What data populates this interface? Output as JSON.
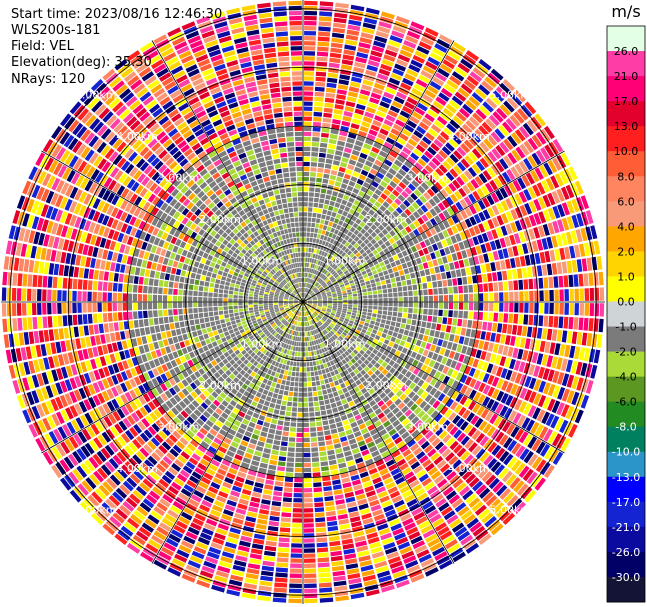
{
  "info": {
    "start_time": "Start time: 2023/08/16 12:46:30",
    "station": "WLS200s-181",
    "field": "Field: VEL",
    "elevation": "Elevation(deg): 35.30",
    "nrays": "NRays: 120"
  },
  "chart_data": {
    "type": "heatmap",
    "projection": "polar PPI scan",
    "field": "VEL",
    "units": "m/s",
    "nrays": 120,
    "range_rings_km": [
      1.0,
      2.0,
      3.0,
      4.0,
      5.0
    ],
    "range_ring_labels": [
      "1.00km",
      "2.00km",
      "3.00km",
      "4.00km",
      "5.00km"
    ],
    "colorbar": {
      "label": "m/s",
      "ticks": [
        "26.0",
        "21.0",
        "17.0",
        "13.0",
        "10.0",
        "8.0",
        "6.0",
        "4.0",
        "2.0",
        "1.0",
        "0.0",
        "-1.0",
        "-2.0",
        "-4.0",
        "-6.0",
        "-8.0",
        "-10.0",
        "-13.0",
        "-17.0",
        "-21.0",
        "-26.0",
        "-30.0"
      ],
      "colors": [
        "#e3ffe6",
        "#ff3da6",
        "#ff0077",
        "#e2002c",
        "#ff1f1f",
        "#ff5d36",
        "#ff8560",
        "#f89a78",
        "#ffa600",
        "#ffd400",
        "#ffff00",
        "#cfd4d6",
        "#7b7b7b",
        "#a9da37",
        "#5c9821",
        "#228b22",
        "#00805f",
        "#2b94c9",
        "#0000ff",
        "#1424d3",
        "#0b0ba0",
        "#000066",
        "#141436"
      ]
    }
  }
}
